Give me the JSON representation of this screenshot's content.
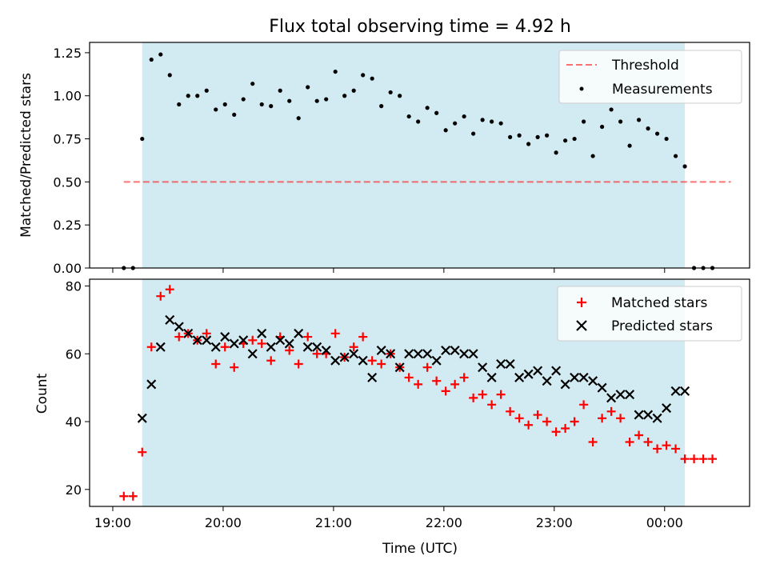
{
  "title": "Flux total observing time = 4.92 h",
  "colors": {
    "observing_window": "#add8e6",
    "threshold": "#ff0000",
    "measurements": "#000000",
    "matched": "#ff0000",
    "predicted": "#000000"
  },
  "chart_data": [
    {
      "type": "scatter",
      "title": "Flux total observing time = 4.92 h",
      "xlabel": "",
      "ylabel": "Matched/Predicted stars",
      "ylim": [
        0,
        1.31
      ],
      "yticks": [
        "0.00",
        "0.25",
        "0.50",
        "0.75",
        "1.00",
        "1.25"
      ],
      "legend_position": "top-right",
      "shaded_span": {
        "start": "19:16",
        "end": "00:11"
      },
      "threshold": {
        "name": "Threshold",
        "value": 0.5,
        "x_range": [
          "19:06",
          "00:36"
        ]
      },
      "series": [
        {
          "name": "Measurements",
          "points": [
            [
              "19:06",
              0
            ],
            [
              "19:11",
              0
            ],
            [
              "19:16",
              0.75
            ],
            [
              "19:21",
              1.21
            ],
            [
              "19:26",
              1.24
            ],
            [
              "19:31",
              1.12
            ],
            [
              "19:36",
              0.95
            ],
            [
              "19:41",
              1.0
            ],
            [
              "19:46",
              1.0
            ],
            [
              "19:51",
              1.03
            ],
            [
              "19:56",
              0.92
            ],
            [
              "20:01",
              0.95
            ],
            [
              "20:06",
              0.89
            ],
            [
              "20:11",
              0.98
            ],
            [
              "20:16",
              1.07
            ],
            [
              "20:21",
              0.95
            ],
            [
              "20:26",
              0.94
            ],
            [
              "20:31",
              1.03
            ],
            [
              "20:36",
              0.97
            ],
            [
              "20:41",
              0.87
            ],
            [
              "20:46",
              1.05
            ],
            [
              "20:51",
              0.97
            ],
            [
              "20:56",
              0.98
            ],
            [
              "21:01",
              1.14
            ],
            [
              "21:06",
              1.0
            ],
            [
              "21:11",
              1.03
            ],
            [
              "21:16",
              1.12
            ],
            [
              "21:21",
              1.1
            ],
            [
              "21:26",
              0.94
            ],
            [
              "21:31",
              1.02
            ],
            [
              "21:36",
              1.0
            ],
            [
              "21:41",
              0.88
            ],
            [
              "21:46",
              0.85
            ],
            [
              "21:51",
              0.93
            ],
            [
              "21:56",
              0.9
            ],
            [
              "22:01",
              0.8
            ],
            [
              "22:06",
              0.84
            ],
            [
              "22:11",
              0.88
            ],
            [
              "22:16",
              0.78
            ],
            [
              "22:21",
              0.86
            ],
            [
              "22:26",
              0.85
            ],
            [
              "22:31",
              0.84
            ],
            [
              "22:36",
              0.76
            ],
            [
              "22:41",
              0.77
            ],
            [
              "22:46",
              0.72
            ],
            [
              "22:51",
              0.76
            ],
            [
              "22:56",
              0.77
            ],
            [
              "23:01",
              0.67
            ],
            [
              "23:06",
              0.74
            ],
            [
              "23:11",
              0.75
            ],
            [
              "23:16",
              0.85
            ],
            [
              "23:21",
              0.65
            ],
            [
              "23:26",
              0.82
            ],
            [
              "23:31",
              0.92
            ],
            [
              "23:36",
              0.85
            ],
            [
              "23:41",
              0.71
            ],
            [
              "23:46",
              0.86
            ],
            [
              "23:51",
              0.81
            ],
            [
              "23:56",
              0.78
            ],
            [
              "00:01",
              0.75
            ],
            [
              "00:06",
              0.65
            ],
            [
              "00:11",
              0.59
            ],
            [
              "00:16",
              0
            ],
            [
              "00:21",
              0
            ],
            [
              "00:26",
              0
            ]
          ]
        }
      ]
    },
    {
      "type": "scatter",
      "xlabel": "Time (UTC)",
      "ylabel": "Count",
      "ylim": [
        15,
        82
      ],
      "yticks": [
        "20",
        "40",
        "60",
        "80"
      ],
      "xticks": [
        "19:00",
        "20:00",
        "21:00",
        "22:00",
        "23:00",
        "00:00"
      ],
      "legend_position": "top-right",
      "shaded_span": {
        "start": "19:16",
        "end": "00:11"
      },
      "series": [
        {
          "name": "Matched stars",
          "marker": "plus",
          "points": [
            [
              "19:06",
              18
            ],
            [
              "19:11",
              18
            ],
            [
              "19:16",
              31
            ],
            [
              "19:21",
              62
            ],
            [
              "19:26",
              77
            ],
            [
              "19:31",
              79
            ],
            [
              "19:36",
              65
            ],
            [
              "19:41",
              66
            ],
            [
              "19:46",
              64
            ],
            [
              "19:51",
              66
            ],
            [
              "19:56",
              57
            ],
            [
              "20:01",
              62
            ],
            [
              "20:06",
              56
            ],
            [
              "20:11",
              63
            ],
            [
              "20:16",
              64
            ],
            [
              "20:21",
              63
            ],
            [
              "20:26",
              58
            ],
            [
              "20:31",
              65
            ],
            [
              "20:36",
              61
            ],
            [
              "20:41",
              57
            ],
            [
              "20:46",
              65
            ],
            [
              "20:51",
              60
            ],
            [
              "20:56",
              60
            ],
            [
              "21:01",
              66
            ],
            [
              "21:06",
              59
            ],
            [
              "21:11",
              62
            ],
            [
              "21:16",
              65
            ],
            [
              "21:21",
              58
            ],
            [
              "21:26",
              57
            ],
            [
              "21:31",
              60
            ],
            [
              "21:36",
              56
            ],
            [
              "21:41",
              53
            ],
            [
              "21:46",
              51
            ],
            [
              "21:51",
              56
            ],
            [
              "21:56",
              52
            ],
            [
              "22:01",
              49
            ],
            [
              "22:06",
              51
            ],
            [
              "22:11",
              53
            ],
            [
              "22:16",
              47
            ],
            [
              "22:21",
              48
            ],
            [
              "22:26",
              45
            ],
            [
              "22:31",
              48
            ],
            [
              "22:36",
              43
            ],
            [
              "22:41",
              41
            ],
            [
              "22:46",
              39
            ],
            [
              "22:51",
              42
            ],
            [
              "22:56",
              40
            ],
            [
              "23:01",
              37
            ],
            [
              "23:06",
              38
            ],
            [
              "23:11",
              40
            ],
            [
              "23:16",
              45
            ],
            [
              "23:21",
              34
            ],
            [
              "23:26",
              41
            ],
            [
              "23:31",
              43
            ],
            [
              "23:36",
              41
            ],
            [
              "23:41",
              34
            ],
            [
              "23:46",
              36
            ],
            [
              "23:51",
              34
            ],
            [
              "23:56",
              32
            ],
            [
              "00:01",
              33
            ],
            [
              "00:06",
              32
            ],
            [
              "00:11",
              29
            ],
            [
              "00:16",
              29
            ],
            [
              "00:21",
              29
            ],
            [
              "00:26",
              29
            ]
          ]
        },
        {
          "name": "Predicted stars",
          "marker": "x",
          "points": [
            [
              "19:16",
              41
            ],
            [
              "19:21",
              51
            ],
            [
              "19:26",
              62
            ],
            [
              "19:31",
              70
            ],
            [
              "19:36",
              68
            ],
            [
              "19:41",
              66
            ],
            [
              "19:46",
              64
            ],
            [
              "19:51",
              64
            ],
            [
              "19:56",
              62
            ],
            [
              "20:01",
              65
            ],
            [
              "20:06",
              63
            ],
            [
              "20:11",
              64
            ],
            [
              "20:16",
              60
            ],
            [
              "20:21",
              66
            ],
            [
              "20:26",
              62
            ],
            [
              "20:31",
              64
            ],
            [
              "20:36",
              63
            ],
            [
              "20:41",
              66
            ],
            [
              "20:46",
              62
            ],
            [
              "20:51",
              62
            ],
            [
              "20:56",
              61
            ],
            [
              "21:01",
              58
            ],
            [
              "21:06",
              59
            ],
            [
              "21:11",
              60
            ],
            [
              "21:16",
              58
            ],
            [
              "21:21",
              53
            ],
            [
              "21:26",
              61
            ],
            [
              "21:31",
              60
            ],
            [
              "21:36",
              56
            ],
            [
              "21:41",
              60
            ],
            [
              "21:46",
              60
            ],
            [
              "21:51",
              60
            ],
            [
              "21:56",
              58
            ],
            [
              "22:01",
              61
            ],
            [
              "22:06",
              61
            ],
            [
              "22:11",
              60
            ],
            [
              "22:16",
              60
            ],
            [
              "22:21",
              56
            ],
            [
              "22:26",
              53
            ],
            [
              "22:31",
              57
            ],
            [
              "22:36",
              57
            ],
            [
              "22:41",
              53
            ],
            [
              "22:46",
              54
            ],
            [
              "22:51",
              55
            ],
            [
              "22:56",
              52
            ],
            [
              "23:01",
              55
            ],
            [
              "23:06",
              51
            ],
            [
              "23:11",
              53
            ],
            [
              "23:16",
              53
            ],
            [
              "23:21",
              52
            ],
            [
              "23:26",
              50
            ],
            [
              "23:31",
              47
            ],
            [
              "23:36",
              48
            ],
            [
              "23:41",
              48
            ],
            [
              "23:46",
              42
            ],
            [
              "23:51",
              42
            ],
            [
              "23:56",
              41
            ],
            [
              "00:01",
              44
            ],
            [
              "00:06",
              49
            ],
            [
              "00:11",
              49
            ]
          ]
        }
      ]
    }
  ]
}
